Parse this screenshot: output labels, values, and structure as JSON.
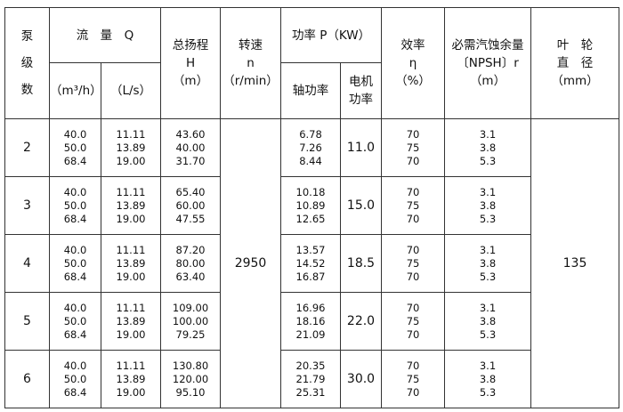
{
  "headers": {
    "stage": "泵\n级\n数",
    "flow": "流　量　Q",
    "flow_m3h": "（m³/h）",
    "flow_ls": "（L/s）",
    "head": [
      "总扬程",
      "H",
      "（m）"
    ],
    "speed": [
      "转速",
      "n",
      "（r/min）"
    ],
    "power": "功率 P（KW）",
    "shaft_power": "轴功率",
    "motor_power": [
      "电机",
      "功率"
    ],
    "efficiency": [
      "效率",
      "η",
      "（%）"
    ],
    "npsh": [
      "必需汽蚀余量",
      "〔NPSH〕r",
      "（m）"
    ],
    "impeller": [
      "叶　轮",
      "直　径",
      "（mm）"
    ]
  },
  "speed_value": "2950",
  "impeller_value": "135",
  "rows": [
    {
      "stage": "2",
      "q_m3h": [
        "40.0",
        "50.0",
        "68.4"
      ],
      "q_ls": [
        "11.11",
        "13.89",
        "19.00"
      ],
      "head": [
        "43.60",
        "40.00",
        "31.70"
      ],
      "shaft": [
        "6.78",
        "7.26",
        "8.44"
      ],
      "motor": "11.0",
      "eff": [
        "70",
        "75",
        "70"
      ],
      "npsh": [
        "3.1",
        "3.8",
        "5.3"
      ]
    },
    {
      "stage": "3",
      "q_m3h": [
        "40.0",
        "50.0",
        "68.4"
      ],
      "q_ls": [
        "11.11",
        "13.89",
        "19.00"
      ],
      "head": [
        "65.40",
        "60.00",
        "47.55"
      ],
      "shaft": [
        "10.18",
        "10.89",
        "12.65"
      ],
      "motor": "15.0",
      "eff": [
        "70",
        "75",
        "70"
      ],
      "npsh": [
        "3.1",
        "3.8",
        "5.3"
      ]
    },
    {
      "stage": "4",
      "q_m3h": [
        "40.0",
        "50.0",
        "68.4"
      ],
      "q_ls": [
        "11.11",
        "13.89",
        "19.00"
      ],
      "head": [
        "87.20",
        "80.00",
        "63.40"
      ],
      "shaft": [
        "13.57",
        "14.52",
        "16.87"
      ],
      "motor": "18.5",
      "eff": [
        "70",
        "75",
        "70"
      ],
      "npsh": [
        "3.1",
        "3.8",
        "5.3"
      ]
    },
    {
      "stage": "5",
      "q_m3h": [
        "40.0",
        "50.0",
        "68.4"
      ],
      "q_ls": [
        "11.11",
        "13.89",
        "19.00"
      ],
      "head": [
        "109.00",
        "100.00",
        "79.25"
      ],
      "shaft": [
        "16.96",
        "18.16",
        "21.09"
      ],
      "motor": "22.0",
      "eff": [
        "70",
        "75",
        "70"
      ],
      "npsh": [
        "3.1",
        "3.8",
        "5.3"
      ]
    },
    {
      "stage": "6",
      "q_m3h": [
        "40.0",
        "50.0",
        "68.4"
      ],
      "q_ls": [
        "11.11",
        "13.89",
        "19.00"
      ],
      "head": [
        "130.80",
        "120.00",
        "95.10"
      ],
      "shaft": [
        "20.35",
        "21.79",
        "25.31"
      ],
      "motor": "30.0",
      "eff": [
        "70",
        "75",
        "70"
      ],
      "npsh": [
        "3.1",
        "3.8",
        "5.3"
      ]
    }
  ]
}
